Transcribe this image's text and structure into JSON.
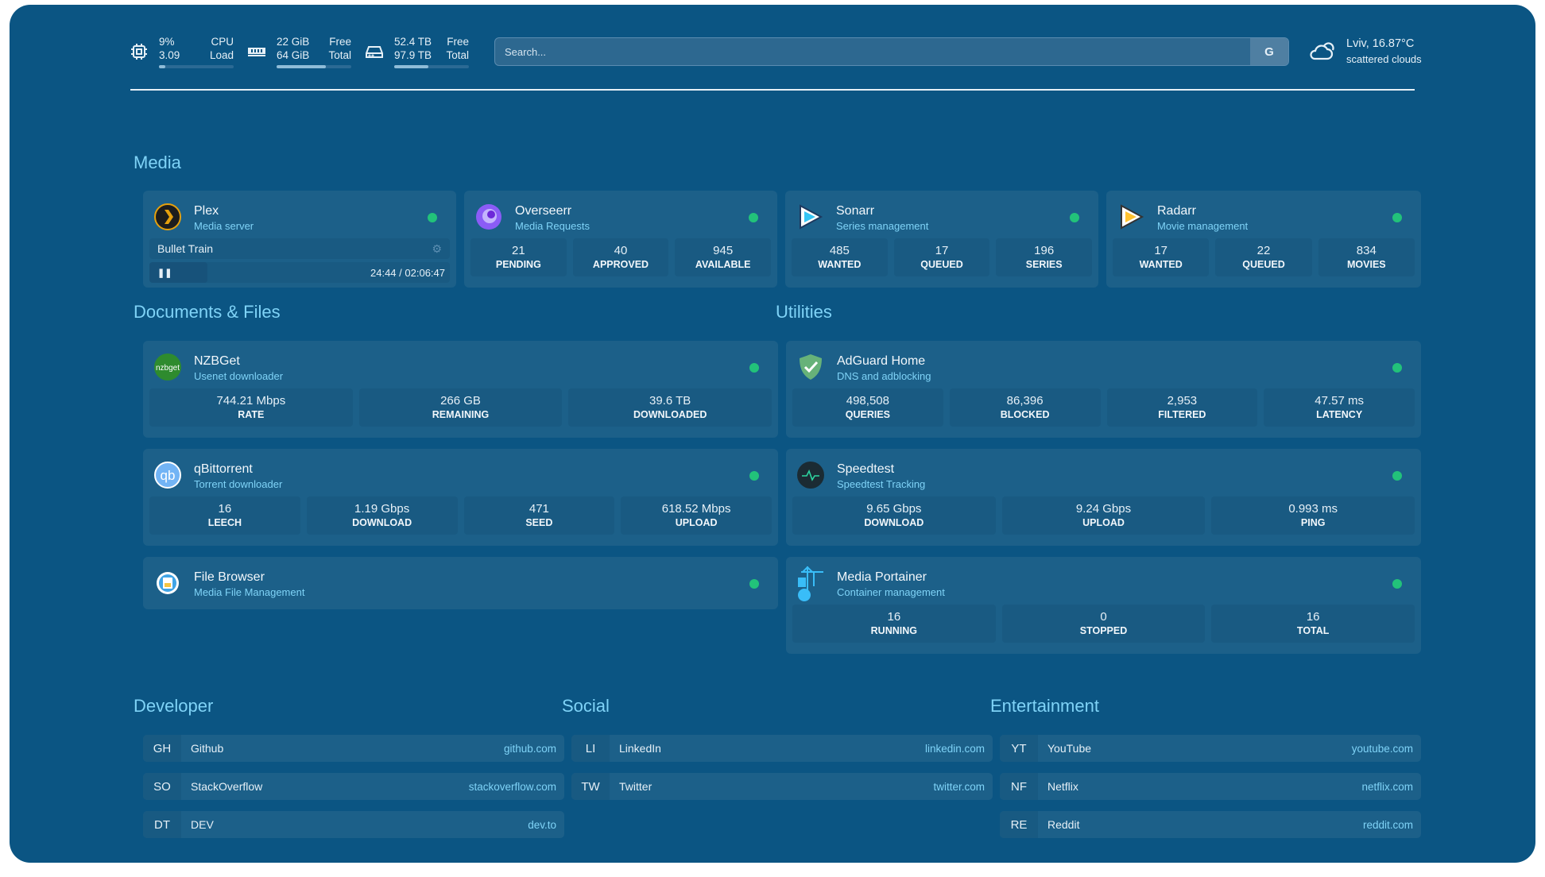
{
  "topbar": {
    "cpu": {
      "icon": "cpu-icon",
      "value1": "9%",
      "label1": "CPU",
      "value2": "3.09",
      "label2": "Load",
      "percent": 9
    },
    "memory": {
      "icon": "memory-icon",
      "value1": "22 GiB",
      "label1": "Free",
      "value2": "64 GiB",
      "label2": "Total",
      "percent": 66
    },
    "disk": {
      "icon": "disk-icon",
      "value1": "52.4 TB",
      "label1": "Free",
      "value2": "97.9 TB",
      "label2": "Total",
      "percent": 46
    },
    "search": {
      "placeholder": "Search...",
      "engine_label": "G"
    },
    "weather": {
      "icon": "cloud-sun-icon",
      "location": "Lviv, 16.87°C",
      "condition": "scattered clouds"
    }
  },
  "colors": {
    "background": "#0b5583",
    "card": "#1c6089",
    "accent": "#7fd3f7",
    "status": "#22c27a"
  },
  "sections": {
    "media": "Media",
    "documents": "Documents & Files",
    "utilities": "Utilities",
    "developer": "Developer",
    "social": "Social",
    "entertainment": "Entertainment"
  },
  "services": {
    "plex": {
      "name": "Plex",
      "desc": "Media server",
      "icon": "plex-icon",
      "now_playing": {
        "title": "Bullet Train",
        "position": "24:44",
        "duration": "02:06:47",
        "progress": 19.5,
        "state": "paused"
      }
    },
    "overseerr": {
      "name": "Overseerr",
      "desc": "Media Requests",
      "icon": "overseerr-icon",
      "stats": [
        {
          "v": "21",
          "l": "PENDING"
        },
        {
          "v": "40",
          "l": "APPROVED"
        },
        {
          "v": "945",
          "l": "AVAILABLE"
        }
      ]
    },
    "sonarr": {
      "name": "Sonarr",
      "desc": "Series management",
      "icon": "sonarr-icon",
      "stats": [
        {
          "v": "485",
          "l": "WANTED"
        },
        {
          "v": "17",
          "l": "QUEUED"
        },
        {
          "v": "196",
          "l": "SERIES"
        }
      ]
    },
    "radarr": {
      "name": "Radarr",
      "desc": "Movie management",
      "icon": "radarr-icon",
      "stats": [
        {
          "v": "17",
          "l": "WANTED"
        },
        {
          "v": "22",
          "l": "QUEUED"
        },
        {
          "v": "834",
          "l": "MOVIES"
        }
      ]
    },
    "nzbget": {
      "name": "NZBGet",
      "desc": "Usenet downloader",
      "icon": "nzbget-icon",
      "stats": [
        {
          "v": "744.21 Mbps",
          "l": "RATE"
        },
        {
          "v": "266 GB",
          "l": "REMAINING"
        },
        {
          "v": "39.6 TB",
          "l": "DOWNLOADED"
        }
      ]
    },
    "qbittorrent": {
      "name": "qBittorrent",
      "desc": "Torrent downloader",
      "icon": "qbittorrent-icon",
      "stats": [
        {
          "v": "16",
          "l": "LEECH"
        },
        {
          "v": "1.19 Gbps",
          "l": "DOWNLOAD"
        },
        {
          "v": "471",
          "l": "SEED"
        },
        {
          "v": "618.52 Mbps",
          "l": "UPLOAD"
        }
      ]
    },
    "filebrowser": {
      "name": "File Browser",
      "desc": "Media File Management",
      "icon": "filebrowser-icon"
    },
    "adguard": {
      "name": "AdGuard Home",
      "desc": "DNS and adblocking",
      "icon": "adguard-shield-icon",
      "stats": [
        {
          "v": "498,508",
          "l": "QUERIES"
        },
        {
          "v": "86,396",
          "l": "BLOCKED"
        },
        {
          "v": "2,953",
          "l": "FILTERED"
        },
        {
          "v": "47.57 ms",
          "l": "LATENCY"
        }
      ]
    },
    "speedtest": {
      "name": "Speedtest",
      "desc": "Speedtest Tracking",
      "icon": "speedtest-icon",
      "stats": [
        {
          "v": "9.65 Gbps",
          "l": "DOWNLOAD"
        },
        {
          "v": "9.24 Gbps",
          "l": "UPLOAD"
        },
        {
          "v": "0.993 ms",
          "l": "PING"
        }
      ]
    },
    "portainer": {
      "name": "Media Portainer",
      "desc": "Container management",
      "icon": "portainer-icon",
      "stats": [
        {
          "v": "16",
          "l": "RUNNING"
        },
        {
          "v": "0",
          "l": "STOPPED"
        },
        {
          "v": "16",
          "l": "TOTAL"
        }
      ]
    }
  },
  "bookmarks": {
    "developer": [
      {
        "abbr": "GH",
        "name": "Github",
        "host": "github.com"
      },
      {
        "abbr": "SO",
        "name": "StackOverflow",
        "host": "stackoverflow.com"
      },
      {
        "abbr": "DT",
        "name": "DEV",
        "host": "dev.to"
      }
    ],
    "social": [
      {
        "abbr": "LI",
        "name": "LinkedIn",
        "host": "linkedin.com"
      },
      {
        "abbr": "TW",
        "name": "Twitter",
        "host": "twitter.com"
      }
    ],
    "entertainment": [
      {
        "abbr": "YT",
        "name": "YouTube",
        "host": "youtube.com"
      },
      {
        "abbr": "NF",
        "name": "Netflix",
        "host": "netflix.com"
      },
      {
        "abbr": "RE",
        "name": "Reddit",
        "host": "reddit.com"
      }
    ]
  }
}
